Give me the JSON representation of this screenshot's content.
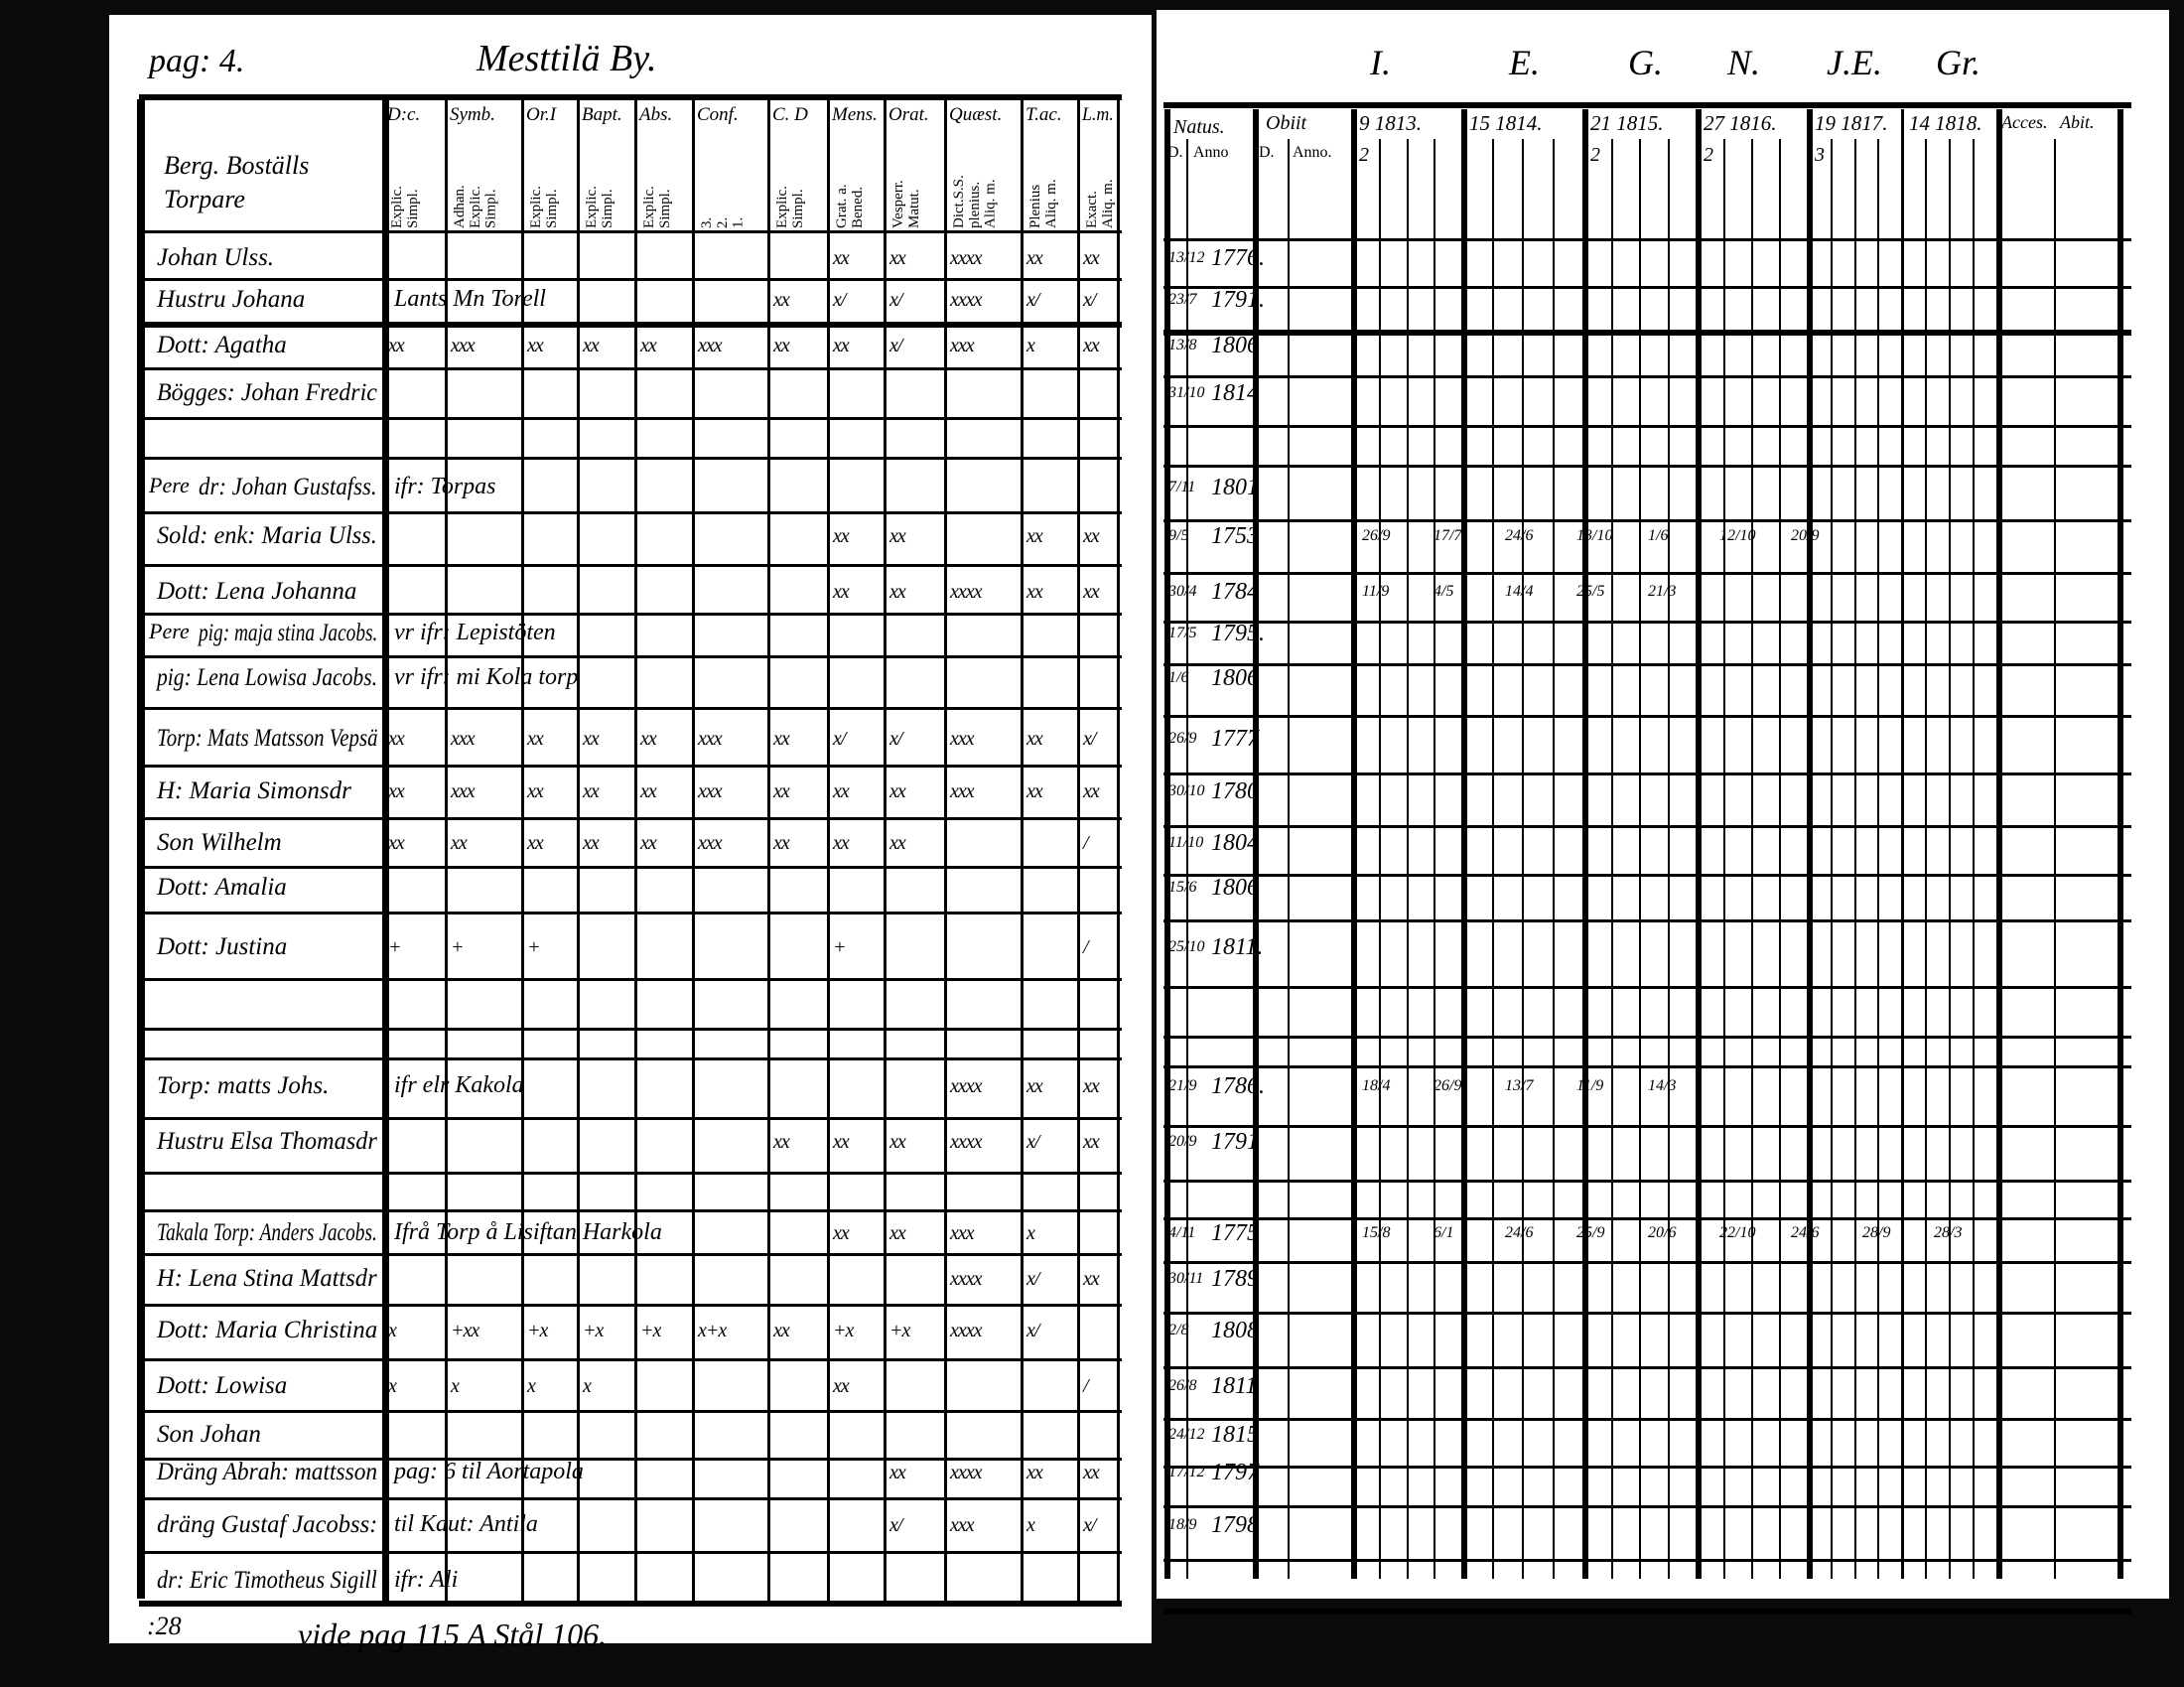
{
  "left_page": {
    "page_label": "pag: 4.",
    "village": "Mesttilä By.",
    "name_header": "Berg. Boställs Torpare",
    "columns": [
      {
        "label": "D:c.",
        "sub": "Explic.\nSimpl."
      },
      {
        "label": "Symb.",
        "sub": "Adhan.\nExplic.\nSimpl."
      },
      {
        "label": "Or.I",
        "sub": "Explic.\nSimpl."
      },
      {
        "label": "Bapt.",
        "sub": "Explic.\nSimpl."
      },
      {
        "label": "Abs.",
        "sub": "Explic.\nSimpl."
      },
      {
        "label": "Conf.",
        "sub": "3.\n2.\n1."
      },
      {
        "label": "C. D",
        "sub": "Explic.\nSimpl."
      },
      {
        "label": "Mens.",
        "sub": "Grat. a.\nBened."
      },
      {
        "label": "Orat.",
        "sub": "Vesperr.\nMatut."
      },
      {
        "label": "Quæst.",
        "sub": "Dict.S.S.\nplenius.\nAliq. m."
      },
      {
        "label": "T.ac.",
        "sub": "Plenius\nAliq. m."
      },
      {
        "label": "L.m.",
        "sub": "Exact.\nAliq. m."
      }
    ],
    "rows": [
      {
        "name": "Johan Ulss.",
        "marks": [
          "",
          "",
          "",
          "",
          "",
          "",
          "",
          "xx",
          "xx",
          "xxxx",
          "xx",
          "xx"
        ]
      },
      {
        "name": "Hustru Johana",
        "note": "Lants Mn Torell",
        "marks": [
          "",
          "",
          "",
          "",
          "",
          "",
          "xx",
          "x/",
          "x/",
          "xxxx",
          "x/",
          "x/"
        ]
      },
      {
        "name": "Dott: Agatha",
        "marks": [
          "xx",
          "xxx",
          "xx",
          "xx",
          "xx",
          "xxx",
          "xx",
          "xx",
          "x/",
          "xxx",
          "x",
          "xx"
        ]
      },
      {
        "name": "Bögges: Johan Fredric",
        "marks": []
      },
      {
        "name": "dr: Johan Gustafss.",
        "prefix": "Pere",
        "note": "ifr: Torpas",
        "marks": []
      },
      {
        "name": "Sold: enk: Maria Ulss.",
        "marks": [
          "",
          "",
          "",
          "",
          "",
          "",
          "",
          "xx",
          "xx",
          "",
          "xx",
          "xx"
        ]
      },
      {
        "name": "Dott: Lena Johanna",
        "marks": [
          "",
          "",
          "",
          "",
          "",
          "",
          "",
          "xx",
          "xx",
          "xxxx",
          "xx",
          "xx"
        ]
      },
      {
        "name": "pig: maja stina Jacobs.",
        "prefix": "Pere",
        "note": "vr  ifr: Lepistöten",
        "marks": []
      },
      {
        "name": "pig: Lena Lowisa Jacobs.",
        "note": "vr  ifr: mi Kola torp",
        "marks": []
      },
      {
        "name": "Torp: Mats Matsson Vepsä",
        "marks": [
          "xx",
          "xxx",
          "xx",
          "xx",
          "xx",
          "xxx",
          "xx",
          "x/",
          "x/",
          "xxx",
          "xx",
          "x/"
        ]
      },
      {
        "name": "H: Maria Simonsdr",
        "marks": [
          "xx",
          "xxx",
          "xx",
          "xx",
          "xx",
          "xxx",
          "xx",
          "xx",
          "xx",
          "xxx",
          "xx",
          "xx"
        ]
      },
      {
        "name": "Son Wilhelm",
        "marks": [
          "xx",
          "xx",
          "xx",
          "xx",
          "xx",
          "xxx",
          "xx",
          "xx",
          "xx",
          "",
          "",
          "/"
        ]
      },
      {
        "name": "Dott: Amalia",
        "marks": []
      },
      {
        "name": "Dott: Justina",
        "marks": [
          "+",
          "+",
          "+",
          "",
          "",
          "",
          "",
          "+",
          "",
          "",
          "",
          "/"
        ]
      },
      {
        "name": "Torp: matts Johs.",
        "note": "ifr elr Kakola",
        "marks": [
          "",
          "",
          "",
          "",
          "",
          "",
          "",
          "",
          "",
          "xxxx",
          "xx",
          "xx"
        ]
      },
      {
        "name": "Hustru Elsa Thomasdr",
        "marks": [
          "",
          "",
          "",
          "",
          "",
          "",
          "xx",
          "xx",
          "xx",
          "xxxx",
          "x/",
          "xx"
        ]
      },
      {
        "name": "Takala Torp: Anders Jacobs.",
        "note": "Ifrå Torp å Lisiftan Harkola",
        "marks": [
          "",
          "",
          "",
          "",
          "",
          "",
          "",
          "xx",
          "xx",
          "xxx",
          "x",
          ""
        ]
      },
      {
        "name": "H: Lena Stina Mattsdr",
        "marks": [
          "",
          "",
          "",
          "",
          "",
          "",
          "",
          "",
          "",
          "xxxx",
          "x/",
          "xx"
        ]
      },
      {
        "name": "Dott: Maria Christina",
        "marks": [
          "x",
          "+xx",
          "+x",
          "+x",
          "+x",
          "x+x",
          "xx",
          "+x",
          "+x",
          "xxxx",
          "x/",
          ""
        ]
      },
      {
        "name": "Dott: Lowisa",
        "marks": [
          "x",
          "x",
          "x",
          "x",
          "",
          "",
          "",
          "xx",
          "",
          "",
          "",
          "/"
        ]
      },
      {
        "name": "Son Johan",
        "marks": []
      },
      {
        "name": "Dräng Abrah: mattsson",
        "note": "pag: 6  til Aortapola",
        "marks": [
          "",
          "",
          "",
          "",
          "",
          "",
          "",
          "",
          "xx",
          "xxxx",
          "xx",
          "xx"
        ]
      },
      {
        "name": "dräng Gustaf Jacobss:",
        "note": "til Kaut: Antila",
        "marks": [
          "",
          "",
          "",
          "",
          "",
          "",
          "",
          "",
          "x/",
          "xxx",
          "x",
          "x/"
        ]
      },
      {
        "name": "dr: Eric Timotheus Sigill",
        "note": "ifr: Ali",
        "marks": []
      }
    ],
    "footer_left": ":28",
    "footer_note": "vide pag 115  A Stål 106."
  },
  "right_page": {
    "top_letters": [
      "I.",
      "E.",
      "G.",
      "N.",
      "J.E.",
      "Gr."
    ],
    "natus": {
      "label": "Natus.",
      "day": "D.",
      "year": "Anno"
    },
    "obiit": {
      "label": "Obiit",
      "day": "D.",
      "year": "Anno."
    },
    "years": [
      {
        "label": "9 1813.",
        "count": "2"
      },
      {
        "label": "15 1814.",
        "count": ""
      },
      {
        "label": "21 1815.",
        "count": "2"
      },
      {
        "label": "27 1816.",
        "count": "2"
      },
      {
        "label": "19 1817.",
        "count": "3"
      },
      {
        "label": "14 1818.",
        "count": ""
      }
    ],
    "accessit": "Acces.",
    "abit": "Abit.",
    "births": [
      {
        "d": "13/12",
        "y": "1776."
      },
      {
        "d": "23/7",
        "y": "1791."
      },
      {
        "d": "13/8",
        "y": "1806"
      },
      {
        "d": "31/10",
        "y": "1814"
      },
      {
        "d": "7/11",
        "y": "1801"
      },
      {
        "d": "9/5",
        "y": "1753"
      },
      {
        "d": "30/4",
        "y": "1784"
      },
      {
        "d": "17/5",
        "y": "1795."
      },
      {
        "d": "1/6",
        "y": "1806"
      },
      {
        "d": "26/9",
        "y": "1777"
      },
      {
        "d": "30/10",
        "y": "1780"
      },
      {
        "d": "11/10",
        "y": "1804"
      },
      {
        "d": "15/6",
        "y": "1806"
      },
      {
        "d": "25/10",
        "y": "1811."
      },
      {
        "d": "21/9",
        "y": "1786."
      },
      {
        "d": "20/9",
        "y": "1791"
      },
      {
        "d": "4/11",
        "y": "1775"
      },
      {
        "d": "30/11",
        "y": "1789"
      },
      {
        "d": "2/8",
        "y": "1808"
      },
      {
        "d": "26/8",
        "y": "1811"
      },
      {
        "d": "24/12",
        "y": "1815"
      },
      {
        "d": "17/12",
        "y": "1797"
      },
      {
        "d": "18/9",
        "y": "1798"
      }
    ],
    "attendance": [
      {
        "row": 5,
        "entries": [
          "26/9",
          "17/7",
          "24/6",
          "13/10",
          "1/6",
          "12/10",
          "20/9"
        ]
      },
      {
        "row": 6,
        "entries": [
          "11/9",
          "4/5",
          "14/4",
          "25/5",
          "21/3"
        ]
      },
      {
        "row": 14,
        "entries": [
          "18/4",
          "26/9",
          "13/7",
          "11/9",
          "14/3"
        ]
      },
      {
        "row": 16,
        "entries": [
          "15/8",
          "6/1",
          "24/6",
          "25/9",
          "20/6",
          "22/10",
          "24/6",
          "28/9",
          "28/3"
        ]
      }
    ]
  }
}
